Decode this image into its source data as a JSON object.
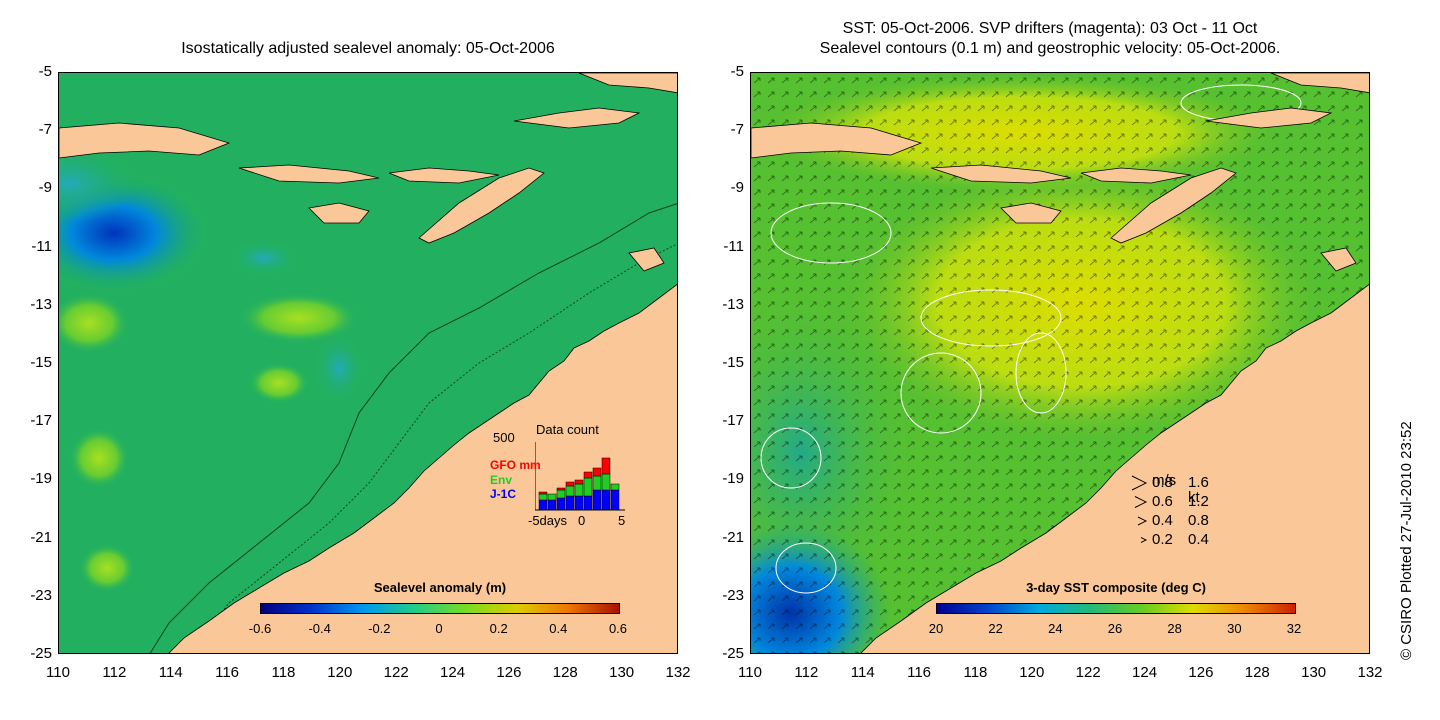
{
  "left_panel": {
    "title": "Isostatically adjusted sealevel anomaly: 05-Oct-2006",
    "colorbar_title": "Sealevel anomaly (m)",
    "colorbar_ticks": [
      "-0.6",
      "-0.4",
      "-0.2",
      "0",
      "0.2",
      "0.4",
      "0.6"
    ],
    "colorbar_colors": [
      "#00007f",
      "#0033cc",
      "#0099ee",
      "#22cc88",
      "#77dd22",
      "#ddcc00",
      "#ee7700",
      "#aa1100"
    ],
    "inset": {
      "title": "Data count",
      "ymax_label": "500",
      "labels": [
        {
          "text": "GFO mm",
          "color": "#ff0000"
        },
        {
          "text": "Env",
          "color": "#22cc22"
        },
        {
          "text": "J-1C",
          "color": "#0000ff"
        }
      ],
      "xlabel_left": "-5days",
      "xlabel_mid": "0",
      "xlabel_right": "5"
    }
  },
  "right_panel": {
    "title_line1": "SST: 05-Oct-2006. SVP drifters (magenta): 03 Oct - 11 Oct",
    "title_line2": "Sealevel contours (0.1 m) and geostrophic velocity: 05-Oct-2006.",
    "colorbar_title": "3-day SST composite (deg C)",
    "colorbar_ticks": [
      "20",
      "22",
      "24",
      "26",
      "28",
      "30",
      "32"
    ],
    "colorbar_colors": [
      "#00008f",
      "#0044cc",
      "#00aadd",
      "#22bb77",
      "#66cc22",
      "#dddd00",
      "#ee8800",
      "#cc2200"
    ],
    "velocity_legend": {
      "header_ms": "m/s",
      "header_kt": "kt",
      "rows": [
        {
          "ms": "0.8",
          "kt": "1.6"
        },
        {
          "ms": "0.6",
          "kt": "1.2"
        },
        {
          "ms": "0.4",
          "kt": "0.8"
        },
        {
          "ms": "0.2",
          "kt": "0.4"
        }
      ]
    }
  },
  "axes": {
    "y_ticks": [
      "-5",
      "-7",
      "-9",
      "-11",
      "-13",
      "-15",
      "-17",
      "-19",
      "-21",
      "-23",
      "-25"
    ],
    "x_ticks": [
      "110",
      "112",
      "114",
      "116",
      "118",
      "120",
      "122",
      "124",
      "126",
      "128",
      "130",
      "132"
    ]
  },
  "credit": "© CSIRO Plotted 27-Jul-2010 23:52",
  "colors": {
    "land": "#fac898",
    "ocean_sla_base": "#22b060",
    "ocean_sst_base": "#55c030"
  }
}
